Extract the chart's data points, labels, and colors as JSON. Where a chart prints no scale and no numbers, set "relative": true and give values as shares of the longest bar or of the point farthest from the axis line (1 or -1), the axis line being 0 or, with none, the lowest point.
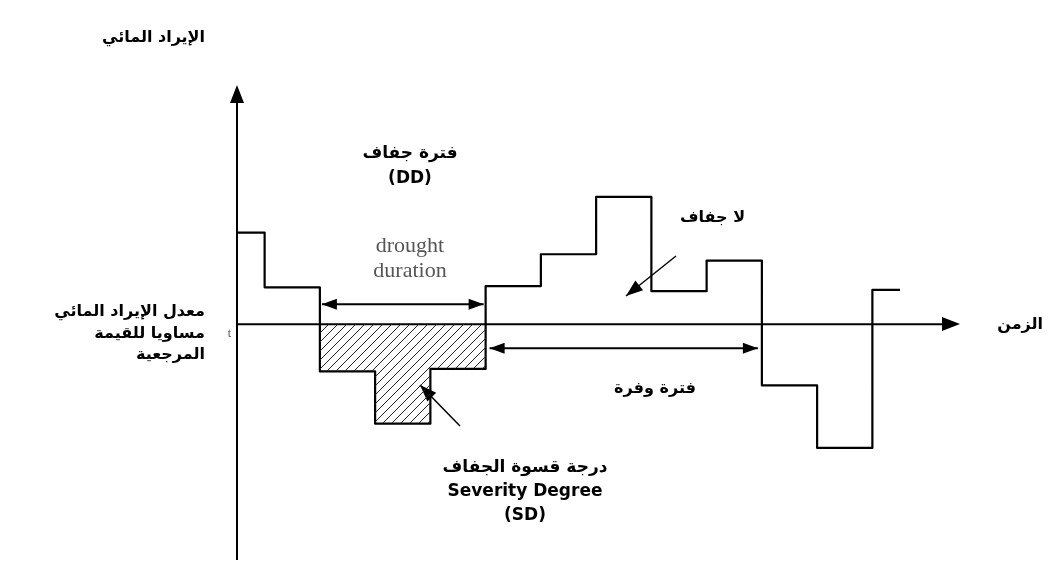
{
  "chart_data": {
    "type": "step",
    "relative": true,
    "xlabel": "الزمن",
    "categories": [
      null,
      null,
      null,
      null,
      null,
      null,
      null,
      null,
      null,
      null,
      null,
      null,
      null
    ],
    "series": [
      {
        "color": "#000000",
        "values": [
          0.72,
          0.29,
          -0.37,
          -0.78,
          -0.35,
          0.3,
          0.55,
          1,
          0.26,
          0.5,
          -0.48,
          -0.97,
          0.27
        ]
      }
    ],
    "ref_lines": [
      {
        "axis": "y",
        "value": 0,
        "label": "t"
      }
    ],
    "annotations": [
      "الإيراد المائي",
      "معدل الإيراد المائي\nمساويا للقيمة\nالمرجعية",
      "فترة جفاف\n(DD)",
      "drought\nduration",
      "لا جفاف",
      "فترة وفرة",
      "درجة قسوة الجفاف\nSeverity Degree\n(SD)"
    ]
  }
}
